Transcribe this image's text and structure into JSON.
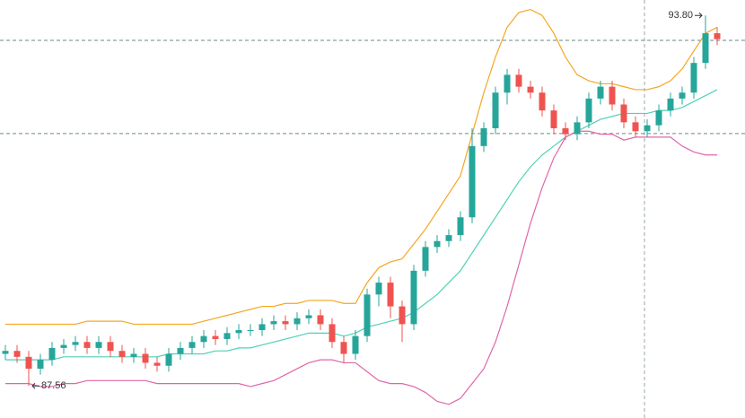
{
  "chart_data": {
    "type": "candlestick",
    "ylim": [
      87.02,
      94.06
    ],
    "up_color": "#26a69a",
    "down_color": "#ef5350",
    "open": [
      88.1,
      88.15,
      88.05,
      87.85,
      88.0,
      88.2,
      88.25,
      88.3,
      88.2,
      88.3,
      88.15,
      88.05,
      88.1,
      87.95,
      87.9,
      88.1,
      88.2,
      88.3,
      88.4,
      88.35,
      88.45,
      88.5,
      88.5,
      88.6,
      88.65,
      88.6,
      88.7,
      88.75,
      88.6,
      88.3,
      88.1,
      88.4,
      89.1,
      89.3,
      88.9,
      88.6,
      89.5,
      89.9,
      90.0,
      90.1,
      90.4,
      91.6,
      91.9,
      92.5,
      92.8,
      92.6,
      92.5,
      92.2,
      91.9,
      91.8,
      92.0,
      92.4,
      92.6,
      92.3,
      92.0,
      91.85,
      91.95,
      92.2,
      92.4,
      92.5,
      93.0,
      93.5
    ],
    "high": [
      88.25,
      88.25,
      88.15,
      88.1,
      88.3,
      88.35,
      88.4,
      88.4,
      88.4,
      88.4,
      88.25,
      88.2,
      88.2,
      88.05,
      88.2,
      88.3,
      88.4,
      88.5,
      88.5,
      88.55,
      88.6,
      88.6,
      88.7,
      88.75,
      88.75,
      88.8,
      88.85,
      88.85,
      88.7,
      88.4,
      88.5,
      89.2,
      89.4,
      89.4,
      89.0,
      89.6,
      90.0,
      90.1,
      90.2,
      90.5,
      91.9,
      92.0,
      92.6,
      92.9,
      92.9,
      92.7,
      92.6,
      92.3,
      92.0,
      92.1,
      92.5,
      92.7,
      92.7,
      92.4,
      92.1,
      92.05,
      92.3,
      92.5,
      92.6,
      93.1,
      93.8,
      93.6
    ],
    "low": [
      88.0,
      87.95,
      87.56,
      87.75,
      87.9,
      88.1,
      88.15,
      88.1,
      88.1,
      88.05,
      87.95,
      87.95,
      87.85,
      87.8,
      87.8,
      88.0,
      88.1,
      88.2,
      88.25,
      88.25,
      88.35,
      88.4,
      88.4,
      88.5,
      88.5,
      88.5,
      88.6,
      88.5,
      88.2,
      87.95,
      88.0,
      88.3,
      88.9,
      88.7,
      88.3,
      88.5,
      89.4,
      89.8,
      89.9,
      90.0,
      90.3,
      91.5,
      91.8,
      92.3,
      92.5,
      92.4,
      92.1,
      91.8,
      91.7,
      91.7,
      91.9,
      92.3,
      92.2,
      91.9,
      91.75,
      91.75,
      91.85,
      92.1,
      92.3,
      92.4,
      92.9,
      93.3
    ],
    "close": [
      88.15,
      88.05,
      87.85,
      88.0,
      88.2,
      88.25,
      88.3,
      88.2,
      88.3,
      88.15,
      88.05,
      88.1,
      87.95,
      87.9,
      88.1,
      88.2,
      88.3,
      88.4,
      88.35,
      88.45,
      88.5,
      88.5,
      88.6,
      88.65,
      88.6,
      88.7,
      88.75,
      88.6,
      88.3,
      88.1,
      88.4,
      89.1,
      89.3,
      88.9,
      88.6,
      89.5,
      89.9,
      90.0,
      90.1,
      90.4,
      91.6,
      91.9,
      92.5,
      92.8,
      92.6,
      92.5,
      92.2,
      91.9,
      91.8,
      92.0,
      92.4,
      92.6,
      92.3,
      92.0,
      91.85,
      91.95,
      92.2,
      92.4,
      92.5,
      93.0,
      93.5,
      93.4
    ],
    "bands": [
      {
        "color": "#f5a623",
        "values": [
          88.6,
          88.6,
          88.6,
          88.6,
          88.6,
          88.6,
          88.6,
          88.65,
          88.65,
          88.65,
          88.65,
          88.6,
          88.6,
          88.6,
          88.6,
          88.6,
          88.6,
          88.65,
          88.7,
          88.75,
          88.8,
          88.85,
          88.9,
          88.9,
          88.95,
          88.95,
          89.0,
          89.0,
          89.0,
          88.95,
          88.95,
          89.3,
          89.55,
          89.65,
          89.7,
          89.95,
          90.2,
          90.5,
          90.8,
          91.1,
          91.8,
          92.5,
          93.1,
          93.6,
          93.85,
          93.9,
          93.8,
          93.5,
          93.1,
          92.8,
          92.7,
          92.65,
          92.65,
          92.6,
          92.55,
          92.55,
          92.6,
          92.7,
          92.9,
          93.2,
          93.5,
          93.6
        ]
      },
      {
        "color": "#4fd1b5",
        "values": [
          88.0,
          88.0,
          88.0,
          88.0,
          88.0,
          88.05,
          88.05,
          88.05,
          88.05,
          88.05,
          88.05,
          88.05,
          88.05,
          88.05,
          88.1,
          88.1,
          88.1,
          88.1,
          88.15,
          88.15,
          88.2,
          88.2,
          88.25,
          88.3,
          88.35,
          88.4,
          88.45,
          88.45,
          88.45,
          88.4,
          88.45,
          88.55,
          88.6,
          88.65,
          88.7,
          88.8,
          88.95,
          89.1,
          89.3,
          89.5,
          89.8,
          90.1,
          90.4,
          90.7,
          91.0,
          91.25,
          91.45,
          91.6,
          91.75,
          91.85,
          91.95,
          92.05,
          92.1,
          92.15,
          92.15,
          92.15,
          92.2,
          92.2,
          92.25,
          92.35,
          92.45,
          92.55
        ]
      },
      {
        "color": "#e066a8",
        "values": [
          87.6,
          87.6,
          87.6,
          87.55,
          87.55,
          87.6,
          87.6,
          87.65,
          87.65,
          87.65,
          87.65,
          87.65,
          87.65,
          87.6,
          87.6,
          87.6,
          87.6,
          87.6,
          87.6,
          87.6,
          87.6,
          87.55,
          87.6,
          87.65,
          87.75,
          87.85,
          87.95,
          88.0,
          88.0,
          87.95,
          87.95,
          87.8,
          87.65,
          87.6,
          87.6,
          87.55,
          87.45,
          87.3,
          87.25,
          87.35,
          87.6,
          87.85,
          88.3,
          88.9,
          89.6,
          90.3,
          90.9,
          91.4,
          91.75,
          91.85,
          91.85,
          91.8,
          91.8,
          91.7,
          91.75,
          91.75,
          91.75,
          91.75,
          91.6,
          91.5,
          91.45,
          91.45
        ]
      }
    ],
    "price_lines": [
      93.38,
      91.81
    ],
    "max_label": "93.80",
    "min_label": "87.56"
  }
}
